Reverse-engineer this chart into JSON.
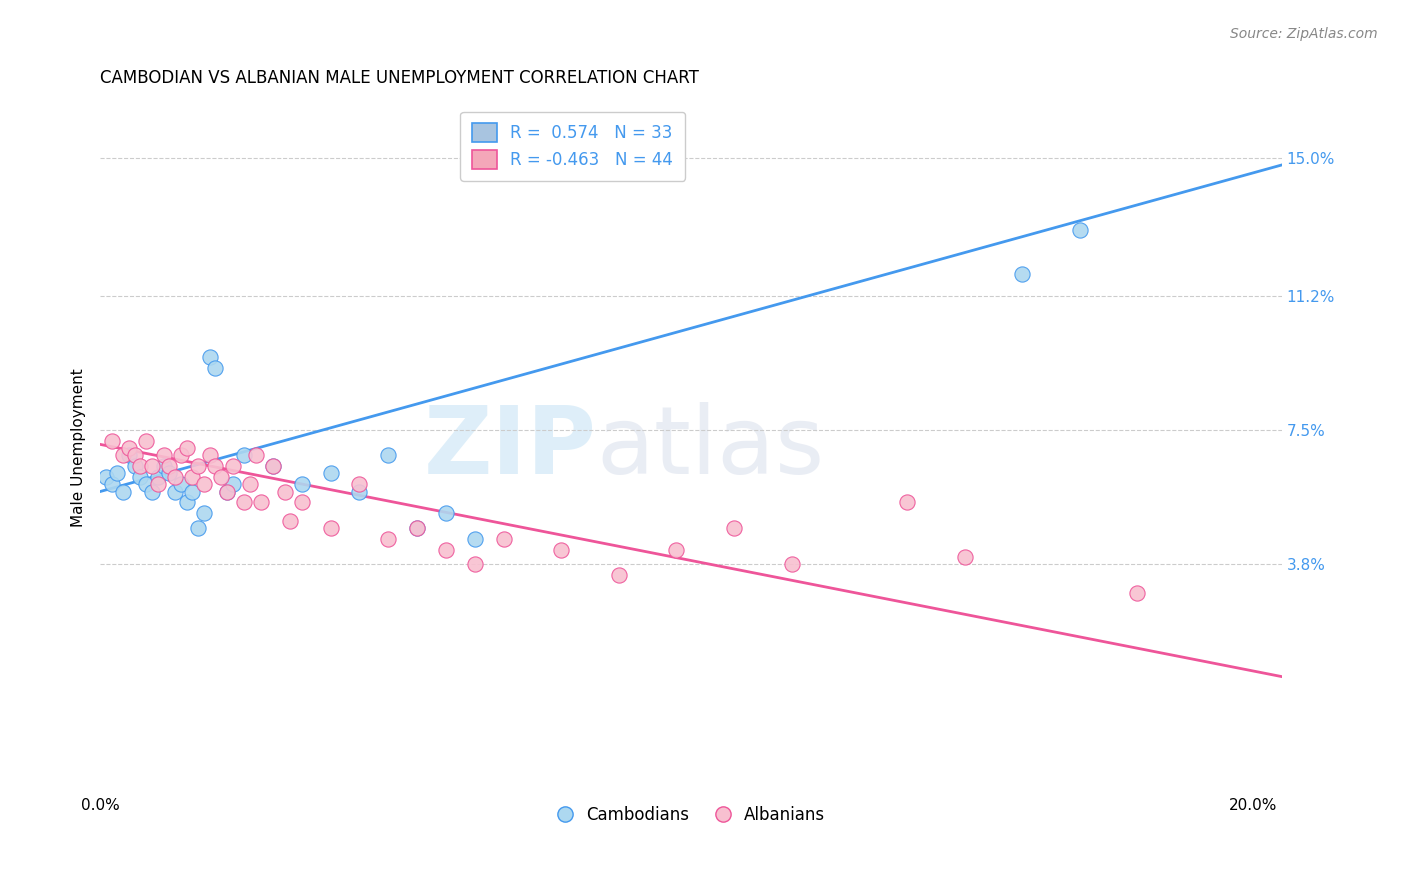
{
  "title": "CAMBODIAN VS ALBANIAN MALE UNEMPLOYMENT CORRELATION CHART",
  "source": "Source: ZipAtlas.com",
  "ylabel": "Male Unemployment",
  "ytick_labels": [
    "15.0%",
    "11.2%",
    "7.5%",
    "3.8%"
  ],
  "ytick_values": [
    0.15,
    0.112,
    0.075,
    0.038
  ],
  "xlim": [
    0.0,
    0.205
  ],
  "ylim": [
    -0.025,
    0.165
  ],
  "legend": {
    "cambodian": {
      "R": 0.574,
      "N": 33,
      "color": "#a8c4e0"
    },
    "albanian": {
      "R": -0.463,
      "N": 44,
      "color": "#f4a7b9"
    }
  },
  "watermark_zip": "ZIP",
  "watermark_atlas": "atlas",
  "cambodian_scatter": [
    [
      0.001,
      0.062
    ],
    [
      0.002,
      0.06
    ],
    [
      0.003,
      0.063
    ],
    [
      0.004,
      0.058
    ],
    [
      0.005,
      0.068
    ],
    [
      0.006,
      0.065
    ],
    [
      0.007,
      0.062
    ],
    [
      0.008,
      0.06
    ],
    [
      0.009,
      0.058
    ],
    [
      0.01,
      0.062
    ],
    [
      0.011,
      0.065
    ],
    [
      0.012,
      0.063
    ],
    [
      0.013,
      0.058
    ],
    [
      0.014,
      0.06
    ],
    [
      0.015,
      0.055
    ],
    [
      0.016,
      0.058
    ],
    [
      0.017,
      0.048
    ],
    [
      0.018,
      0.052
    ],
    [
      0.019,
      0.095
    ],
    [
      0.02,
      0.092
    ],
    [
      0.022,
      0.058
    ],
    [
      0.023,
      0.06
    ],
    [
      0.025,
      0.068
    ],
    [
      0.03,
      0.065
    ],
    [
      0.035,
      0.06
    ],
    [
      0.04,
      0.063
    ],
    [
      0.045,
      0.058
    ],
    [
      0.05,
      0.068
    ],
    [
      0.055,
      0.048
    ],
    [
      0.06,
      0.052
    ],
    [
      0.065,
      0.045
    ],
    [
      0.16,
      0.118
    ],
    [
      0.17,
      0.13
    ]
  ],
  "albanian_scatter": [
    [
      0.002,
      0.072
    ],
    [
      0.004,
      0.068
    ],
    [
      0.005,
      0.07
    ],
    [
      0.006,
      0.068
    ],
    [
      0.007,
      0.065
    ],
    [
      0.008,
      0.072
    ],
    [
      0.009,
      0.065
    ],
    [
      0.01,
      0.06
    ],
    [
      0.011,
      0.068
    ],
    [
      0.012,
      0.065
    ],
    [
      0.013,
      0.062
    ],
    [
      0.014,
      0.068
    ],
    [
      0.015,
      0.07
    ],
    [
      0.016,
      0.062
    ],
    [
      0.017,
      0.065
    ],
    [
      0.018,
      0.06
    ],
    [
      0.019,
      0.068
    ],
    [
      0.02,
      0.065
    ],
    [
      0.021,
      0.062
    ],
    [
      0.022,
      0.058
    ],
    [
      0.023,
      0.065
    ],
    [
      0.025,
      0.055
    ],
    [
      0.026,
      0.06
    ],
    [
      0.027,
      0.068
    ],
    [
      0.028,
      0.055
    ],
    [
      0.03,
      0.065
    ],
    [
      0.032,
      0.058
    ],
    [
      0.033,
      0.05
    ],
    [
      0.035,
      0.055
    ],
    [
      0.04,
      0.048
    ],
    [
      0.045,
      0.06
    ],
    [
      0.05,
      0.045
    ],
    [
      0.055,
      0.048
    ],
    [
      0.06,
      0.042
    ],
    [
      0.065,
      0.038
    ],
    [
      0.07,
      0.045
    ],
    [
      0.08,
      0.042
    ],
    [
      0.09,
      0.035
    ],
    [
      0.1,
      0.042
    ],
    [
      0.11,
      0.048
    ],
    [
      0.12,
      0.038
    ],
    [
      0.14,
      0.055
    ],
    [
      0.15,
      0.04
    ],
    [
      0.18,
      0.03
    ]
  ],
  "cambodian_line": {
    "x0": 0.0,
    "y0": 0.058,
    "x1": 0.205,
    "y1": 0.148
  },
  "albanian_line": {
    "x0": 0.0,
    "y0": 0.071,
    "x1": 0.205,
    "y1": 0.007
  },
  "scatter_color_cambodian": "#add8f0",
  "scatter_color_albanian": "#f8c0d0",
  "line_color_cambodian": "#4499ee",
  "line_color_albanian": "#ee5599",
  "grid_color": "#cccccc",
  "background_color": "#ffffff",
  "title_fontsize": 12,
  "axis_label_fontsize": 11,
  "tick_fontsize": 11,
  "legend_fontsize": 12,
  "source_fontsize": 10
}
